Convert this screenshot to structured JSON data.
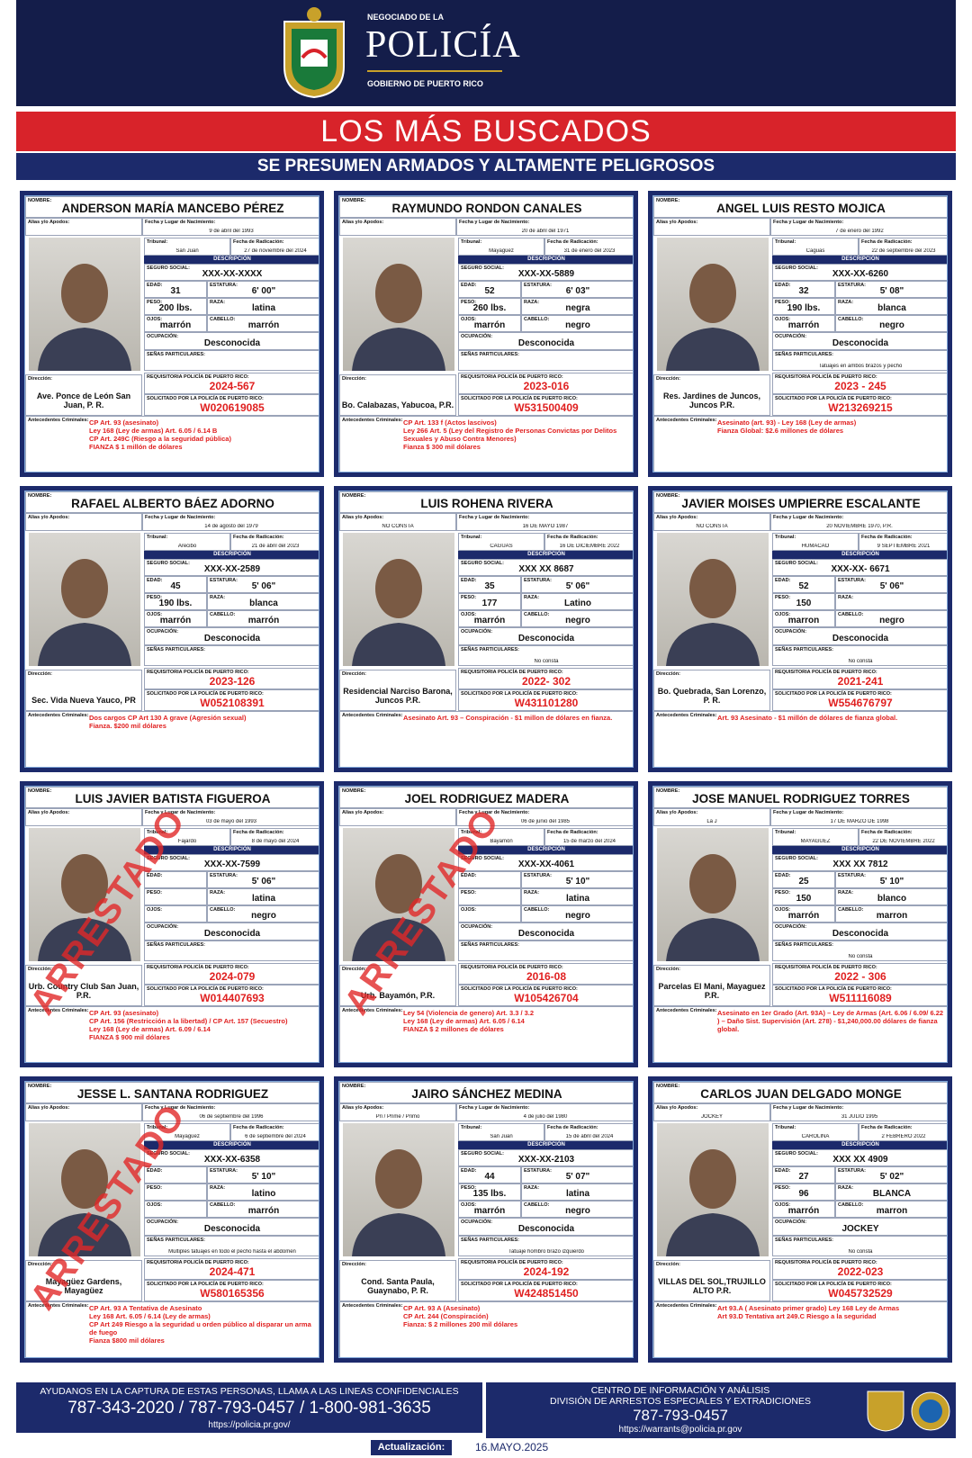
{
  "header": {
    "agency_prefix": "NEGOCIADO DE LA",
    "title": "POLICÍA",
    "government": "GOBIERNO DE PUERTO RICO"
  },
  "banner": {
    "title": "LOS MÁS BUSCADOS",
    "subtitle": "SE PRESUMEN ARMADOS Y ALTAMENTE PELIGROSOS"
  },
  "labels": {
    "name": "NOMBRE:",
    "alias": "Alias y/o Apodos:",
    "birth": "Fecha y Lugar de Nacimiento:",
    "court": "Tribunal:",
    "filed": "Fecha de Radicación:",
    "description": "DESCRIPCIÓN",
    "ssn": "SEGURO SOCIAL:",
    "age": "EDAD:",
    "height": "ESTATURA:",
    "weight": "PESO:",
    "race": "RAZA:",
    "eyes": "OJOS:",
    "hair": "CABELLO:",
    "occupation": "OCUPACIÓN:",
    "marks": "SEÑAS PARTICULARES:",
    "address": "Dirección:",
    "requisition": "REQUISITORIA POLICÍA DE PUERTO RICO:",
    "warrant": "SOLICITADO POR LA POLICÍA DE PUERTO RICO:",
    "record": "Antecedentes Criminales:"
  },
  "stamp": "ARRESTADO",
  "cards": [
    {
      "name": "ANDERSON MARÍA MANCEBO PÉREZ",
      "birth": "9 de abril del 1993",
      "court": "San Juan",
      "filed": "27 de noviembre del 2024",
      "ssn": "XXX-XX-XXXX",
      "age": "31",
      "height": "6' 00\"",
      "weight": "200 lbs.",
      "race": "latina",
      "eyes": "marrón",
      "hair": "marrón",
      "occupation": "Desconocida",
      "address": "Ave. Ponce de León San Juan, P. R.",
      "requisition": "2024-567",
      "warrant": "W020619085",
      "record": [
        "CP Art. 93 (asesinato)",
        "Ley 168 (Ley de armas) Art. 6.05 / 6.14 B",
        "CP Art. 249C (Riesgo a la seguridad pública)",
        "FIANZA $ 1 millón de dólares"
      ],
      "arrested": false
    },
    {
      "name": "RAYMUNDO RONDON CANALES",
      "birth": "20 de abril del 1971",
      "court": "Mayagüez",
      "filed": "31 de enero del 2023",
      "ssn": "XXX-XX-5889",
      "age": "52",
      "height": "6' 03\"",
      "weight": "260 lbs.",
      "race": "negra",
      "eyes": "marrón",
      "hair": "negro",
      "occupation": "Desconocida",
      "address": "Bo. Calabazas, Yabucoa, P.R.",
      "requisition": "2023-016",
      "warrant": "W531500409",
      "record": [
        "CP Art. 133 f (Actos lascivos)",
        "Ley 266 Art. 5 (Ley del Registro de Personas Convictas por Delitos Sexuales y Abuso Contra Menores)",
        "Fianza $ 300 mil dólares"
      ],
      "arrested": false
    },
    {
      "name": "ANGEL LUIS RESTO MOJICA",
      "birth": "7 de enero del 1992",
      "court": "Caguas",
      "filed": "22 de septiembre del 2023",
      "ssn": "XXX-XX-6260",
      "age": "32",
      "height": "5' 08\"",
      "weight": "190 lbs.",
      "race": "blanca",
      "eyes": "marrón",
      "hair": "negro",
      "occupation": "Desconocida",
      "marks": "Tatuajes en ambos brazos y pecho",
      "address": "Res. Jardines de Juncos, Juncos P.R.",
      "requisition": "2023 - 245",
      "warrant": "W213269215",
      "record": [
        "Asesinato (art. 93) - Ley 168 (Ley de armas)",
        "Fianza Global: $2.6 millones de dólares"
      ],
      "arrested": false
    },
    {
      "name": "RAFAEL ALBERTO BÁEZ ADORNO",
      "birth": "14 de agosto del 1979",
      "court": "Arecibo",
      "filed": "21 de abril del 2023",
      "ssn": "XXX-XX-2589",
      "age": "45",
      "height": "5' 06\"",
      "weight": "190 lbs.",
      "race": "blanca",
      "eyes": "marrón",
      "hair": "marrón",
      "occupation": "Desconocida",
      "address": "Sec. Vida Nueva Yauco, PR",
      "requisition": "2023-126",
      "warrant": "W052108391",
      "record": [
        "Dos cargos CP Art 130 A grave (Agresión sexual)",
        "Fianza. $200 mil dólares"
      ],
      "arrested": false
    },
    {
      "name": "LUIS ROHENA RIVERA",
      "alias": "NO CONSTA",
      "birth": "16 DE MAYO 1987",
      "court": "CAGUAS",
      "filed": "16 DE DICIEMBRE 2022",
      "ssn": "XXX XX 8687",
      "age": "35",
      "height": "5' 06\"",
      "weight": "177",
      "race": "Latino",
      "eyes": "marrón",
      "hair": "negro",
      "occupation": "Desconocida",
      "marks": "No consta",
      "address": "Residencial Narciso Barona, Juncos P.R.",
      "requisition": "2022- 302",
      "warrant": "W431101280",
      "record": [
        "Asesinato Art. 93 – Conspiración - $1 millon de dólares en fianza."
      ],
      "arrested": false
    },
    {
      "name": "JAVIER MOISES UMPIERRE ESCALANTE",
      "alias": "NO CONSTA",
      "birth": "20 NOVIEMBRE 1970, P.R.",
      "court": "HUMACAO",
      "filed": "9 SEPTIEMBRE 2021",
      "ssn": "XXX-XX- 6671",
      "age": "52",
      "height": "5' 06\"",
      "weight": "150",
      "eyes": "marron",
      "hair": "negro",
      "occupation": "Desconocida",
      "marks": "No consta",
      "address": "Bo. Quebrada, San Lorenzo, P. R.",
      "requisition": "2021-241",
      "warrant": "W554676797",
      "record": [
        "Art. 93 Asesinato - $1 millón de dólares de fianza global."
      ],
      "arrested": false
    },
    {
      "name": "LUIS JAVIER BATISTA FIGUEROA",
      "birth": "03 de mayo del 1993",
      "court": "Fajardo",
      "filed": "8 de mayo del 2024",
      "ssn": "XXX-XX-7599",
      "height": "5' 06\"",
      "race": "latina",
      "hair": "negro",
      "occupation": "Desconocida",
      "address": "Urb. Country Club San Juan, P.R.",
      "requisition": "2024-079",
      "warrant": "W014407693",
      "record": [
        "CP Art. 93 (asesinato)",
        "CP Art. 156 (Restricción a la libertad) / CP Art. 157 (Secuestro)",
        "Ley 168 (Ley de armas) Art. 6.09 / 6.14",
        "FIANZA $ 900 mil dólares"
      ],
      "arrested": true
    },
    {
      "name": "JOEL RODRIGUEZ MADERA",
      "birth": "06 de junio del 1985",
      "court": "Bayamón",
      "filed": "15 de marzo del 2024",
      "ssn": "XXX-XX-4061",
      "height": "5' 10\"",
      "race": "latina",
      "hair": "negro",
      "occupation": "Desconocida",
      "address": "Urb. Bayamón, P.R.",
      "requisition": "2016-08",
      "warrant": "W105426704",
      "record": [
        "Ley 54 (Violencia de genero) Art. 3.3 / 3.2",
        "Ley 168 (Ley de armas) Art. 6.05 / 6.14",
        "FIANZA $ 2 millones de dólares"
      ],
      "arrested": true
    },
    {
      "name": "JOSE MANUEL RODRIGUEZ TORRES",
      "alias": "La J",
      "birth": "17 DE MARZO DE 1998",
      "court": "MAYAGUEZ",
      "filed": "22 DE NOVIEMBRE 2022",
      "ssn": "XXX XX 7812",
      "age": "25",
      "height": "5' 10\"",
      "weight": "150",
      "race": "blanco",
      "eyes": "marrón",
      "hair": "marron",
      "occupation": "Desconocida",
      "marks": "No consta",
      "address": "Parcelas El Mani, Mayaguez P.R.",
      "requisition": "2022 - 306",
      "warrant": "W511116089",
      "record": [
        "Asesinato en 1er Grado (Art. 93A) – Ley de Armas (Art. 6.06 / 6.09/ 6.22 ) – Daño Sist. Supervisión (Art. 278) - $1,240,000.00 dólares de fianza global."
      ],
      "arrested": false
    },
    {
      "name": "JESSE L. SANTANA RODRIGUEZ",
      "birth": "06 de septiembre del 1996",
      "court": "Mayagüez",
      "filed": "6 de septiembre del 2024",
      "ssn": "XXX-XX-6358",
      "height": "5' 10\"",
      "race": "latino",
      "hair": "marrón",
      "occupation": "Desconocida",
      "marks": "Múltiples tatuajes en todo el pecho hasta el abdomen",
      "address": "Mayagüez Gardens, Mayagüez",
      "requisition": "2024-471",
      "warrant": "W580165356",
      "record": [
        "CP Art. 93 A Tentativa de Asesinato",
        "Ley 168 Art. 6.05 / 6.14 (Ley de armas)",
        "CP Art 249 Riesgo a la seguridad u orden público al disparar un arma de fuego",
        "Fianza $800 mil dólares"
      ],
      "arrested": true
    },
    {
      "name": "JAIRO SÁNCHEZ MEDINA",
      "alias": "Pri / Prime / Primo",
      "birth": "4 de julio del 1980",
      "court": "San Juan",
      "filed": "15 de abril del 2024",
      "ssn": "XXX-XX-2103",
      "age": "44",
      "height": "5' 07\"",
      "weight": "135 lbs.",
      "race": "latina",
      "eyes": "marrón",
      "hair": "negro",
      "occupation": "Desconocida",
      "marks": "Tatuaje hombro brazo izquierdo",
      "address": "Cond. Santa Paula, Guaynabo, P. R.",
      "requisition": "2024-192",
      "warrant": "W424851450",
      "record": [
        "CP Art. 93 A (Asesinato)",
        "CP Art. 244 (Conspiración)",
        "Fianza: $ 2 millones 200 mil dólares"
      ],
      "arrested": false
    },
    {
      "name": "CARLOS JUAN DELGADO MONGE",
      "alias": "JOCKEY",
      "birth": "31 JULIO 1995",
      "court": "CAROLINA",
      "filed": "2 FEBRERO 2022",
      "ssn": "XXX XX 4909",
      "age": "27",
      "height": "5' 02\"",
      "weight": "96",
      "race": "BLANCA",
      "eyes": "marrón",
      "hair": "marron",
      "occupation": "JOCKEY",
      "marks": "No consta",
      "address": "VILLAS DEL SOL,TRUJILLO ALTO P.R.",
      "requisition": "2022-023",
      "warrant": "W045732529",
      "record": [
        "Art 93.A ( Asesinato primer grado) Ley 168 Ley de Armas",
        "Art 93.D Tentativa art 249.C Riesgo a la seguridad"
      ],
      "arrested": false
    }
  ],
  "footer": {
    "left_text": "AYUDANOS EN LA CAPTURA DE ESTAS PERSONAS, LLAMA A LAS  LINEAS CONFIDENCIALES",
    "left_phones": "787-343-2020 / 787-793-0457 / 1-800-981-3635",
    "left_url": "https://policia.pr.gov/",
    "right_center": "CENTRO DE INFORMACIÓN Y ANÁLISIS",
    "right_division": "DIVISIÓN DE ARRESTOS ESPECIALES Y EXTRADICIONES",
    "right_phone": "787-793-0457",
    "right_url": "https://warrants@policia.pr.gov",
    "update_label": "Actualización:",
    "update_date": "16.MAYO.2025"
  }
}
